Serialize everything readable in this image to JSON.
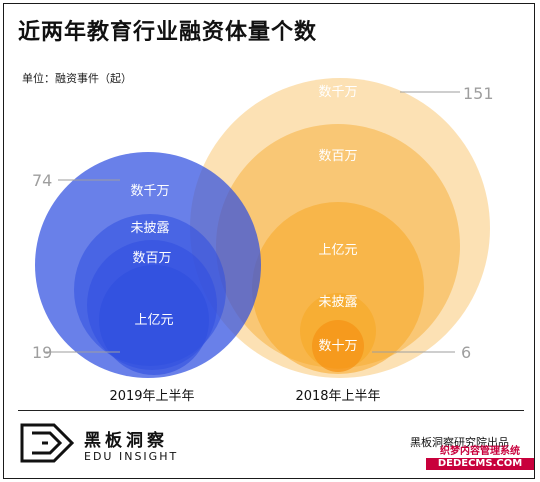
{
  "title": "近两年教育行业融资体量个数",
  "unit_label": "单位：融资事件（起）",
  "brand": {
    "name_cn": "黑板洞察",
    "name_en": "EDU INSIGHT"
  },
  "source": "黑板洞察研究院出品",
  "watermark": {
    "line1": "织梦内容管理系统",
    "line2": "DEDECMS.COM"
  },
  "colors": {
    "blue": "#2f4fe0",
    "orange": "#f7a827",
    "gray_text": "#9e9e9e"
  },
  "chart_data": {
    "type": "nested-bubble",
    "groups": [
      {
        "name": "2019年上半年",
        "color": "#2f4fe0",
        "total": 74,
        "min_label": 19,
        "rounds": [
          "数千万",
          "未披露",
          "数百万",
          "上亿元"
        ]
      },
      {
        "name": "2018年上半年",
        "color": "#f7a827",
        "total": 151,
        "min_label": 6,
        "rounds": [
          "数千万",
          "数百万",
          "上亿元",
          "未披露",
          "数十万"
        ]
      }
    ],
    "scale_labels": [
      74,
      151,
      19,
      6
    ]
  }
}
